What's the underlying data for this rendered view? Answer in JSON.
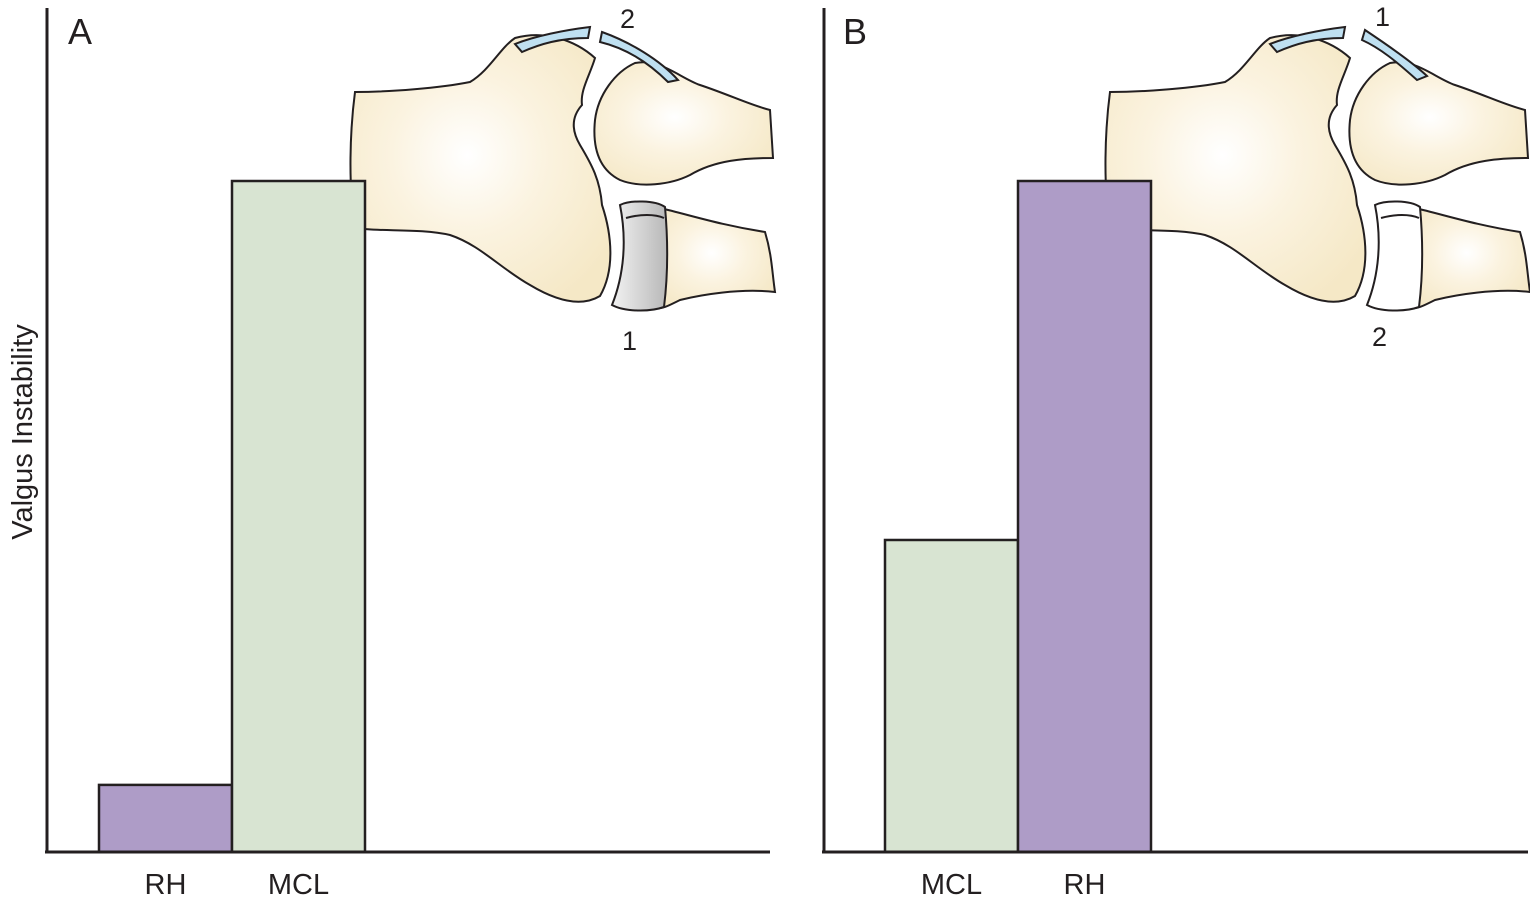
{
  "chart_data": [
    {
      "type": "bar",
      "panel_label": "A",
      "ylabel": "Valgus Instability",
      "categories": [
        "RH",
        "MCL"
      ],
      "values": [
        10,
        100
      ],
      "ylim": [
        0,
        100
      ],
      "grid": false,
      "annotations": [
        "1",
        "2"
      ]
    },
    {
      "type": "bar",
      "panel_label": "B",
      "ylabel": "",
      "categories": [
        "MCL",
        "RH"
      ],
      "values": [
        46.5,
        100
      ],
      "ylim": [
        0,
        100
      ],
      "grid": false,
      "annotations": [
        "1",
        "2"
      ]
    }
  ],
  "colors": {
    "RH": "#ae9cc7",
    "MCL": "#d8e4d2",
    "bone": "#f7ebce",
    "cartilage": "#bfe0f1",
    "radial_head_grey": "#c9c9c9",
    "outline": "#231f20"
  }
}
